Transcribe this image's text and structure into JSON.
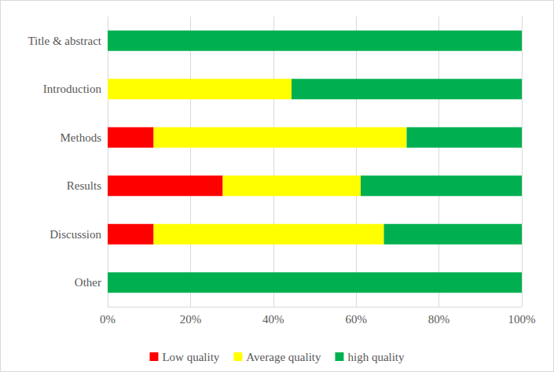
{
  "chart_data": {
    "type": "bar",
    "orientation": "horizontal",
    "stacked": true,
    "grid": true,
    "legend": "bottom",
    "categories": [
      "Title & abstract",
      "Introduction",
      "Methods",
      "Results",
      "Discussion",
      "Other"
    ],
    "series": [
      {
        "name": "Low quality",
        "color": "#ff0000",
        "values": [
          0,
          0,
          11.1,
          27.8,
          11.1,
          0
        ]
      },
      {
        "name": "Average quality",
        "color": "#ffff00",
        "values": [
          0,
          44.4,
          61.1,
          33.3,
          55.6,
          0
        ]
      },
      {
        "name": "high quality",
        "color": "#00b050",
        "values": [
          100,
          55.6,
          27.8,
          38.9,
          33.3,
          100
        ]
      }
    ],
    "xlim": [
      0,
      100
    ],
    "xticks": [
      {
        "value": 0,
        "label": "0%"
      },
      {
        "value": 20,
        "label": "20%"
      },
      {
        "value": 40,
        "label": "40%"
      },
      {
        "value": 60,
        "label": "60%"
      },
      {
        "value": 80,
        "label": "80%"
      },
      {
        "value": 100,
        "label": "100%"
      }
    ]
  }
}
